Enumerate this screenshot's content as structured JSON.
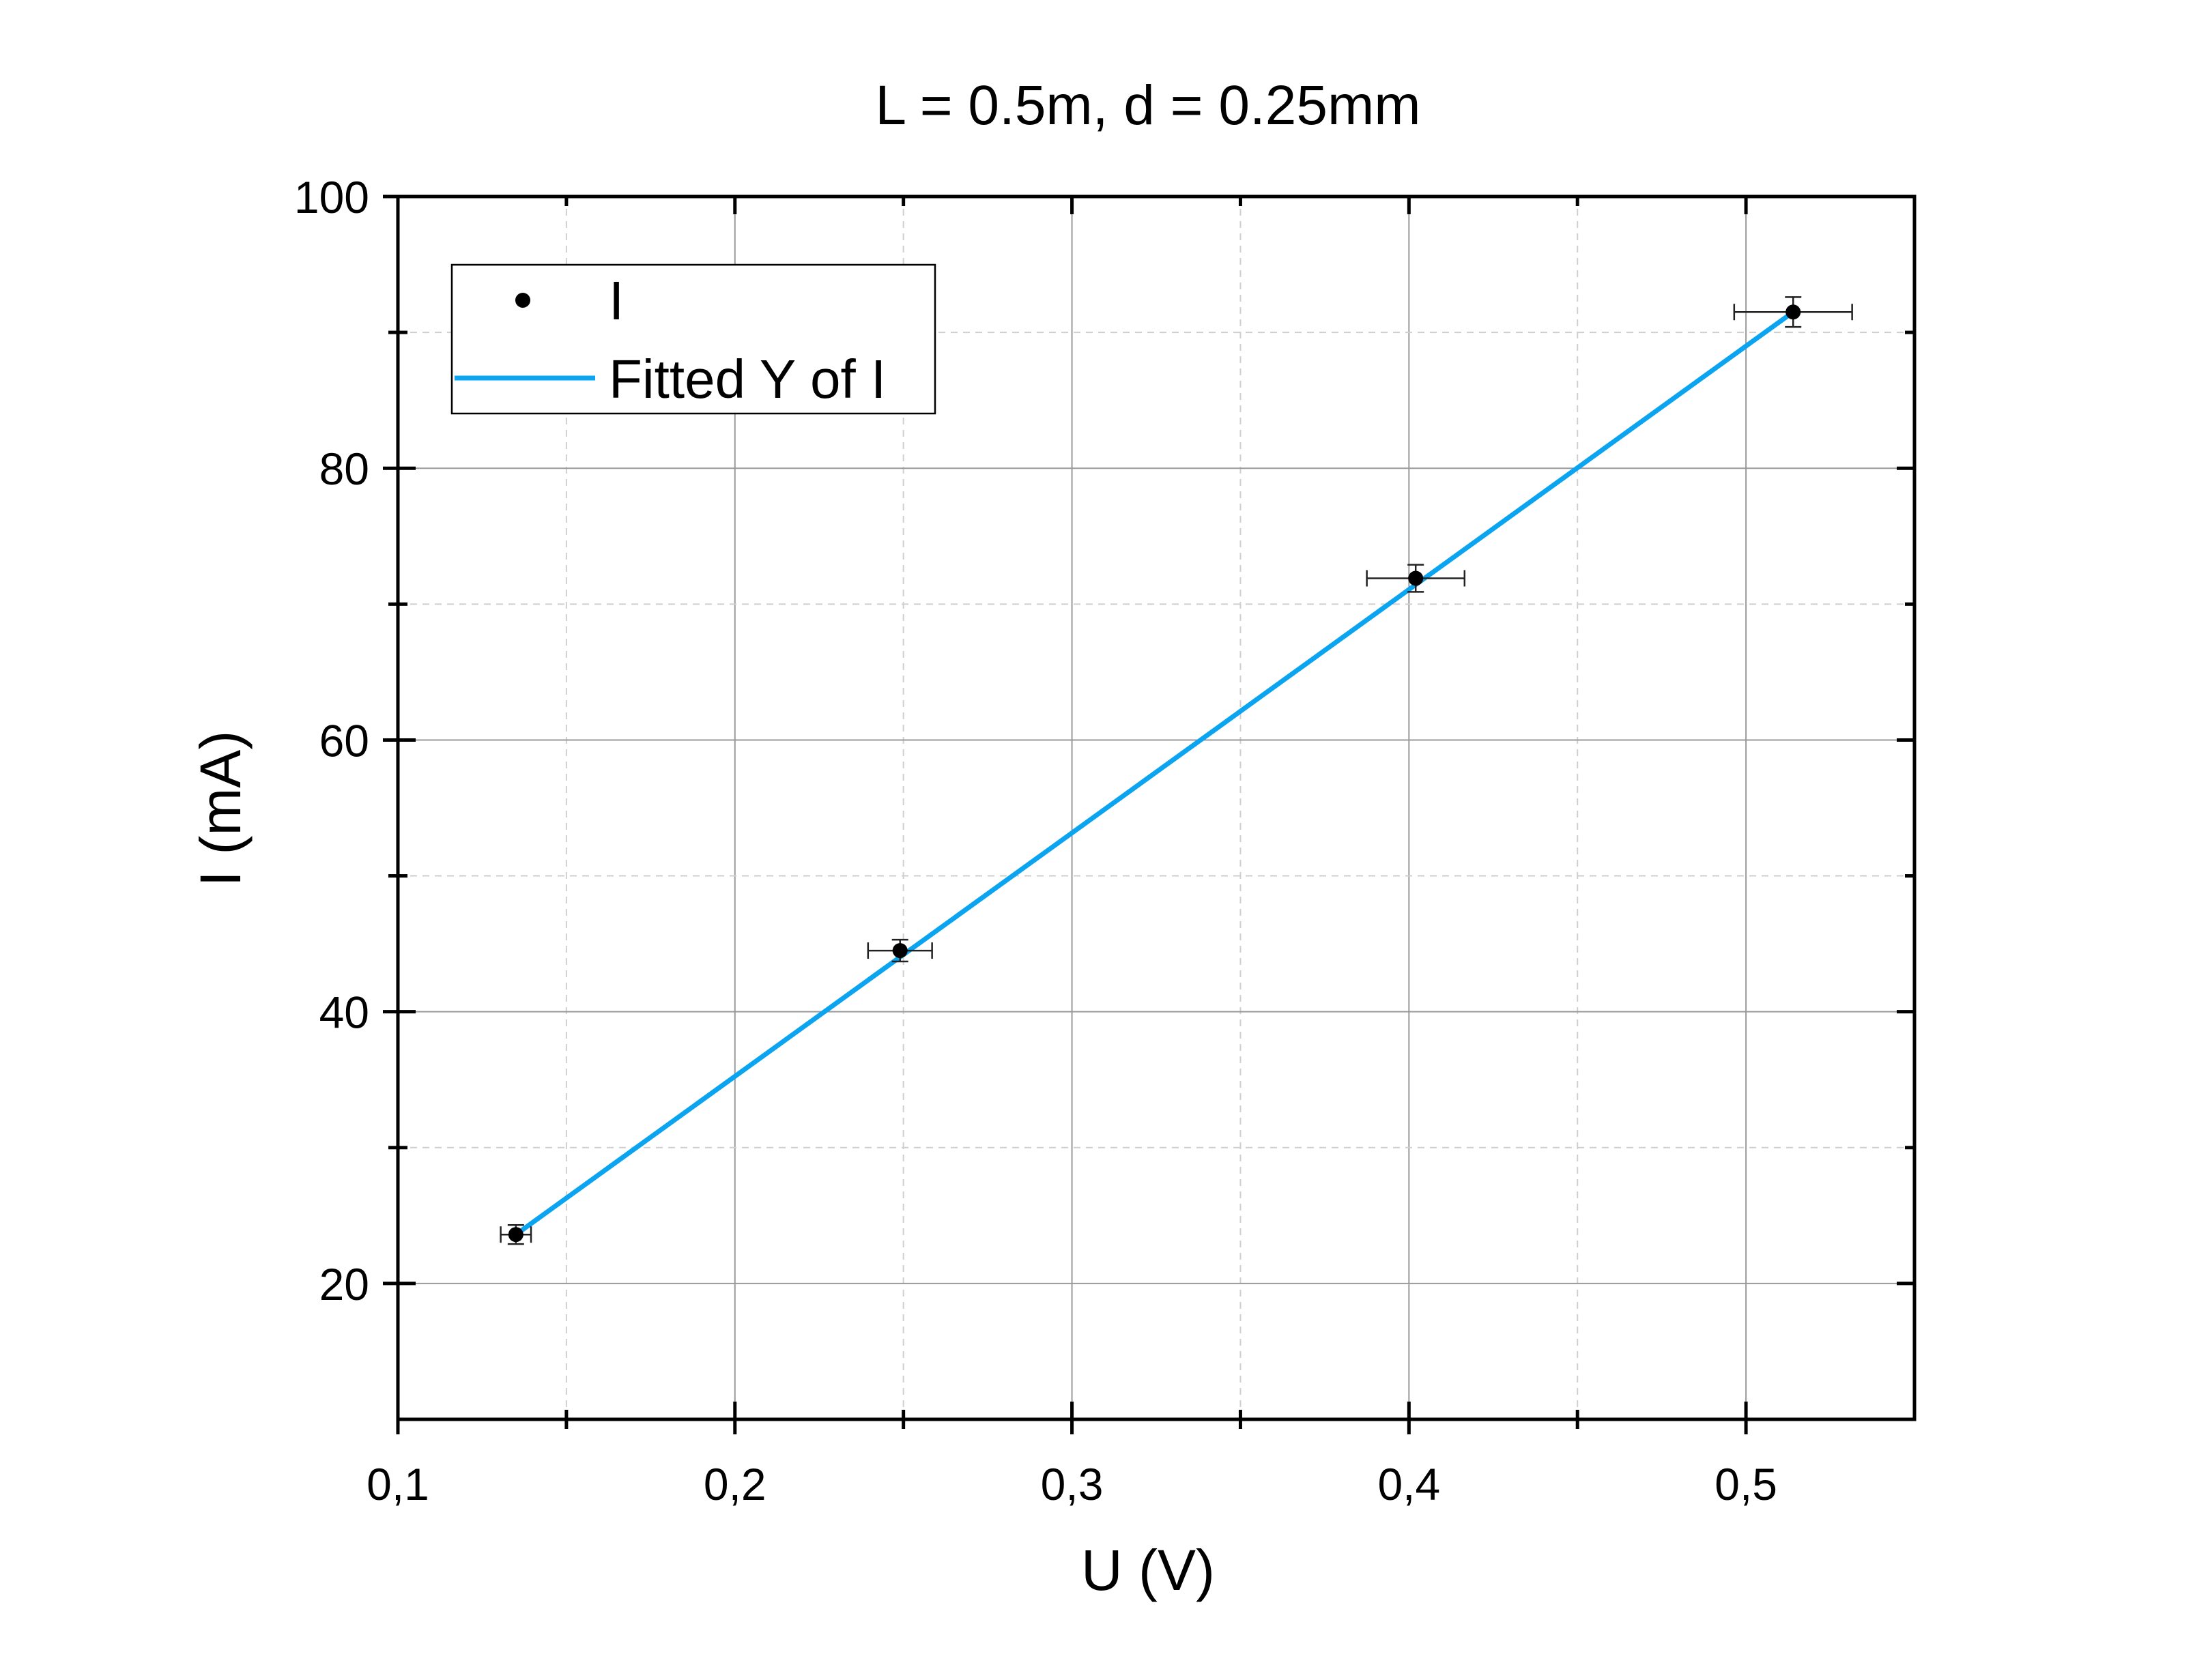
{
  "chart_data": {
    "type": "scatter",
    "title": "L = 0.5m, d = 0.25mm",
    "xlabel": "U (V)",
    "ylabel": "I (mA)",
    "xlim": [
      0.1,
      0.55
    ],
    "ylim": [
      10,
      100
    ],
    "x_ticks": [
      0.1,
      0.2,
      0.3,
      0.4,
      0.5
    ],
    "x_tick_labels": [
      "0,1",
      "0,2",
      "0,3",
      "0,4",
      "0,5"
    ],
    "y_ticks": [
      20,
      40,
      60,
      80,
      100
    ],
    "y_tick_labels": [
      "20",
      "40",
      "60",
      "80",
      "100"
    ],
    "grid": true,
    "legend_position": "top-left",
    "series": [
      {
        "name": "I",
        "kind": "scatter",
        "color": "#000000",
        "points": [
          {
            "x": 0.135,
            "y": 23.6,
            "xerr": 0.0045,
            "yerr": 0.7
          },
          {
            "x": 0.249,
            "y": 44.5,
            "xerr": 0.0095,
            "yerr": 0.8
          },
          {
            "x": 0.402,
            "y": 71.9,
            "xerr": 0.0145,
            "yerr": 1.0
          },
          {
            "x": 0.514,
            "y": 91.5,
            "xerr": 0.0175,
            "yerr": 1.1
          }
        ]
      },
      {
        "name": "Fitted Y of I",
        "kind": "line",
        "color": "#0aa4f0",
        "x": [
          0.135,
          0.514
        ],
        "y": [
          23.6,
          91.5
        ]
      }
    ]
  }
}
